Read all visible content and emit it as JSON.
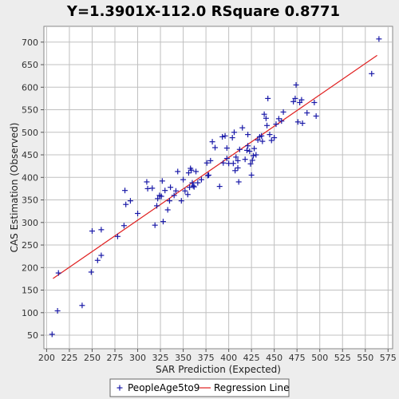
{
  "chart_data": {
    "type": "scatter",
    "title": "Y=1.3901X-112.0    RSquare 0.8771",
    "xlabel": "SAR Prediction (Expected)",
    "ylabel": "CAS Estimation (Observed)",
    "xlim": [
      197,
      580
    ],
    "ylim": [
      20,
      735
    ],
    "xticks": [
      200,
      225,
      250,
      275,
      300,
      325,
      350,
      375,
      400,
      425,
      450,
      475,
      500,
      525,
      550,
      575
    ],
    "yticks": [
      50,
      100,
      150,
      200,
      250,
      300,
      350,
      400,
      450,
      500,
      550,
      600,
      650,
      700
    ],
    "grid": true,
    "legend_position": "bottom",
    "colors": {
      "points": "#1a1aa8",
      "line": "#e02020",
      "plot_bg": "#ffffff",
      "grid": "#c0c0c0"
    },
    "series": [
      {
        "name": "PeopleAge5to9",
        "marker": "plus",
        "points": [
          [
            206,
            52
          ],
          [
            212,
            104
          ],
          [
            213,
            188
          ],
          [
            239,
            116
          ],
          [
            249,
            190
          ],
          [
            250,
            281
          ],
          [
            256,
            216
          ],
          [
            260,
            227
          ],
          [
            260,
            284
          ],
          [
            278,
            269
          ],
          [
            285,
            293
          ],
          [
            286,
            371
          ],
          [
            287,
            340
          ],
          [
            292,
            348
          ],
          [
            300,
            320
          ],
          [
            310,
            390
          ],
          [
            311,
            375
          ],
          [
            316,
            376
          ],
          [
            319,
            294
          ],
          [
            321,
            337
          ],
          [
            322,
            353
          ],
          [
            324,
            360
          ],
          [
            326,
            358
          ],
          [
            327,
            392
          ],
          [
            328,
            302
          ],
          [
            330,
            371
          ],
          [
            333,
            328
          ],
          [
            335,
            348
          ],
          [
            336,
            378
          ],
          [
            340,
            360
          ],
          [
            342,
            370
          ],
          [
            344,
            413
          ],
          [
            348,
            348
          ],
          [
            350,
            395
          ],
          [
            352,
            370
          ],
          [
            355,
            362
          ],
          [
            356,
            410
          ],
          [
            357,
            378
          ],
          [
            358,
            420
          ],
          [
            359,
            416
          ],
          [
            360,
            388
          ],
          [
            361,
            381
          ],
          [
            362,
            379
          ],
          [
            364,
            413
          ],
          [
            366,
            388
          ],
          [
            370,
            395
          ],
          [
            376,
            432
          ],
          [
            377,
            404
          ],
          [
            378,
            405
          ],
          [
            380,
            437
          ],
          [
            382,
            479
          ],
          [
            385,
            466
          ],
          [
            390,
            380
          ],
          [
            393,
            490
          ],
          [
            394,
            432
          ],
          [
            396,
            492
          ],
          [
            398,
            442
          ],
          [
            398,
            465
          ],
          [
            400,
            431
          ],
          [
            404,
            488
          ],
          [
            405,
            431
          ],
          [
            406,
            500
          ],
          [
            407,
            415
          ],
          [
            408,
            445
          ],
          [
            410,
            421
          ],
          [
            410,
            437
          ],
          [
            411,
            390
          ],
          [
            412,
            462
          ],
          [
            415,
            510
          ],
          [
            418,
            440
          ],
          [
            420,
            460
          ],
          [
            421,
            470
          ],
          [
            421,
            495
          ],
          [
            423,
            458
          ],
          [
            424,
            430
          ],
          [
            425,
            405
          ],
          [
            426,
            438
          ],
          [
            427,
            448
          ],
          [
            428,
            464
          ],
          [
            430,
            450
          ],
          [
            432,
            483
          ],
          [
            434,
            490
          ],
          [
            436,
            492
          ],
          [
            437,
            480
          ],
          [
            439,
            540
          ],
          [
            441,
            531
          ],
          [
            442,
            515
          ],
          [
            443,
            575
          ],
          [
            445,
            495
          ],
          [
            447,
            482
          ],
          [
            450,
            488
          ],
          [
            452,
            518
          ],
          [
            455,
            530
          ],
          [
            458,
            525
          ],
          [
            460,
            545
          ],
          [
            471,
            568
          ],
          [
            473,
            575
          ],
          [
            474,
            605
          ],
          [
            476,
            523
          ],
          [
            478,
            566
          ],
          [
            480,
            572
          ],
          [
            481,
            520
          ],
          [
            486,
            543
          ],
          [
            494,
            566
          ],
          [
            496,
            536
          ],
          [
            557,
            630
          ],
          [
            565,
            707
          ]
        ]
      },
      {
        "name": "Regression Line",
        "type": "line",
        "slope": 1.3901,
        "intercept": -112.0,
        "x_range": [
          207,
          563
        ]
      }
    ]
  }
}
